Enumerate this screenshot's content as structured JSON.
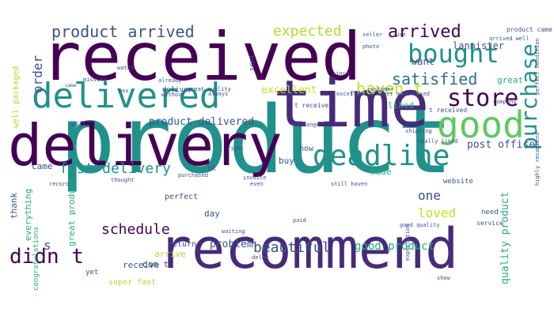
{
  "colors": {
    "background": "#ffffff",
    "palette": {
      "dark_purple": "#440154",
      "purple": "#472a7a",
      "indigo": "#3b528b",
      "blue": "#2c728e",
      "teal": "#21918c",
      "green_teal": "#27ad81",
      "green": "#5ec962",
      "light_green": "#addc30",
      "yellow": "#c5e021"
    }
  },
  "words": [
    {
      "text": "product",
      "color": "teal",
      "size": 118,
      "rot": 0
    },
    {
      "text": "received",
      "color": "dark_purple",
      "size": 84,
      "rot": 0
    },
    {
      "text": "delivery",
      "color": "dark_purple",
      "size": 72,
      "rot": 0
    },
    {
      "text": "time",
      "color": "purple",
      "size": 82,
      "rot": 0
    },
    {
      "text": "recommend",
      "color": "purple",
      "size": 70,
      "rot": 0
    },
    {
      "text": "delivered",
      "color": "teal",
      "size": 44,
      "rot": 0
    },
    {
      "text": "good",
      "color": "green",
      "size": 46,
      "rot": 0
    },
    {
      "text": "deadline",
      "color": "teal",
      "size": 36,
      "rot": 0
    },
    {
      "text": "bought",
      "color": "teal",
      "size": 32,
      "rot": 0
    },
    {
      "text": "store",
      "color": "dark_purple",
      "size": 30,
      "rot": 0
    },
    {
      "text": "purchase",
      "color": "teal",
      "size": 28,
      "rot": -90
    },
    {
      "text": "didn t",
      "color": "dark_purple",
      "size": 26,
      "rot": 0
    },
    {
      "text": "arrived",
      "color": "dark_purple",
      "size": 22,
      "rot": 0
    },
    {
      "text": "satisfied",
      "color": "blue",
      "size": 20,
      "rot": 0
    },
    {
      "text": "product arrived",
      "color": "indigo",
      "size": 20,
      "rot": 0
    },
    {
      "text": "expected",
      "color": "light_green",
      "size": 18,
      "rot": 0
    },
    {
      "text": "fast delivery",
      "color": "teal",
      "size": 18,
      "rot": 0
    },
    {
      "text": "haven t",
      "color": "yellow",
      "size": 20,
      "rot": 0
    },
    {
      "text": "beautiful",
      "color": "indigo",
      "size": 18,
      "rot": 0
    },
    {
      "text": "schedule",
      "color": "dark_purple",
      "size": 18,
      "rot": 0
    },
    {
      "text": "loved",
      "color": "yellow",
      "size": 16,
      "rot": 0
    },
    {
      "text": "one",
      "color": "indigo",
      "size": 16,
      "rot": 0
    },
    {
      "text": "order",
      "color": "indigo",
      "size": 16,
      "rot": -90
    },
    {
      "text": "good product",
      "color": "green_teal",
      "size": 14,
      "rot": 0
    },
    {
      "text": "problem",
      "color": "indigo",
      "size": 13,
      "rot": 0
    },
    {
      "text": "product delivered",
      "color": "indigo",
      "size": 13,
      "rot": 0
    },
    {
      "text": "post office",
      "color": "indigo",
      "size": 13,
      "rot": 0
    },
    {
      "text": "quality product",
      "color": "green_teal",
      "size": 13,
      "rot": -90
    },
    {
      "text": "excellent",
      "color": "yellow",
      "size": 13,
      "rot": 0
    },
    {
      "text": "want",
      "color": "indigo",
      "size": 12,
      "rot": 0
    },
    {
      "text": "liked",
      "color": "green_teal",
      "size": 11,
      "rot": 0
    },
    {
      "text": "great",
      "color": "green_teal",
      "size": 11,
      "rot": 0
    },
    {
      "text": "lannister",
      "color": "indigo",
      "size": 12,
      "rot": 0
    },
    {
      "text": "everything",
      "color": "green_teal",
      "size": 11,
      "rot": -90
    },
    {
      "text": "great product",
      "color": "green_teal",
      "size": 11,
      "rot": -90
    },
    {
      "text": "well packaged",
      "color": "light_green",
      "size": 10,
      "rot": -90
    },
    {
      "text": "congratulations",
      "color": "green_teal",
      "size": 9,
      "rot": -90
    },
    {
      "text": "receive",
      "color": "indigo",
      "size": 11,
      "rot": 0
    },
    {
      "text": "arrive",
      "color": "light_green",
      "size": 11,
      "rot": 0
    },
    {
      "text": "return",
      "color": "indigo",
      "size": 10,
      "rot": 0
    },
    {
      "text": "perfect",
      "color": "indigo",
      "size": 10,
      "rot": 0
    },
    {
      "text": "day",
      "color": "indigo",
      "size": 11,
      "rot": 0
    },
    {
      "text": "made",
      "color": "green_teal",
      "size": 11,
      "rot": 0
    },
    {
      "text": "buy",
      "color": "indigo",
      "size": 11,
      "rot": 0
    },
    {
      "text": "now",
      "color": "indigo",
      "size": 10,
      "rot": 0
    },
    {
      "text": "came",
      "color": "indigo",
      "size": 11,
      "rot": 0
    },
    {
      "text": "thank",
      "color": "indigo",
      "size": 11,
      "rot": -90
    },
    {
      "text": "s",
      "color": "indigo",
      "size": 16,
      "rot": 0
    },
    {
      "text": "don t",
      "color": "indigo",
      "size": 11,
      "rot": 0
    },
    {
      "text": "super fast",
      "color": "light_green",
      "size": 10,
      "rot": 0
    },
    {
      "text": "yet",
      "color": "indigo",
      "size": 9,
      "rot": 0
    },
    {
      "text": "need",
      "color": "indigo",
      "size": 9,
      "rot": 0
    },
    {
      "text": "service",
      "color": "indigo",
      "size": 8,
      "rot": 0
    },
    {
      "text": "website",
      "color": "indigo",
      "size": 9,
      "rot": 0
    },
    {
      "text": "ok",
      "color": "indigo",
      "size": 9,
      "rot": 0
    },
    {
      "text": "t receive",
      "color": "indigo",
      "size": 8,
      "rot": 0
    },
    {
      "text": "t received",
      "color": "indigo",
      "size": 8,
      "rot": 0
    },
    {
      "text": "sent",
      "color": "indigo",
      "size": 9,
      "rot": -90
    },
    {
      "text": "for",
      "color": "indigo",
      "size": 9,
      "rot": 0
    },
    {
      "text": "deliver",
      "color": "indigo",
      "size": 9,
      "rot": 0
    },
    {
      "text": "great quality",
      "color": "indigo",
      "size": 7,
      "rot": 0
    },
    {
      "text": "already",
      "color": "indigo",
      "size": 7,
      "rot": 0
    },
    {
      "text": "without",
      "color": "indigo",
      "size": 7,
      "rot": 0
    },
    {
      "text": "always",
      "color": "indigo",
      "size": 7,
      "rot": 0
    },
    {
      "text": "box",
      "color": "indigo",
      "size": 7,
      "rot": 0
    },
    {
      "text": "watch",
      "color": "indigo",
      "size": 7,
      "rot": 0
    },
    {
      "text": "will",
      "color": "indigo",
      "size": 8,
      "rot": 0
    },
    {
      "text": "missing",
      "color": "indigo",
      "size": 7,
      "rot": 0
    },
    {
      "text": "came",
      "color": "indigo",
      "size": 6,
      "rot": 0
    },
    {
      "text": "waiting",
      "color": "indigo",
      "size": 7,
      "rot": 0
    },
    {
      "text": "right",
      "color": "indigo",
      "size": 7,
      "rot": 0
    },
    {
      "text": "purchased",
      "color": "indigo",
      "size": 7,
      "rot": 0
    },
    {
      "text": "invoice",
      "color": "indigo",
      "size": 7,
      "rot": 0
    },
    {
      "text": "exchange",
      "color": "indigo",
      "size": 7,
      "rot": 0
    },
    {
      "text": "shipping",
      "color": "indigo",
      "size": 7,
      "rot": 0
    },
    {
      "text": "really liked",
      "color": "indigo",
      "size": 7,
      "rot": 0
    },
    {
      "text": "company",
      "color": "indigo",
      "size": 7,
      "rot": 0
    },
    {
      "text": "customer",
      "color": "indigo",
      "size": 7,
      "rot": 0
    },
    {
      "text": "excellent product advertised",
      "color": "indigo",
      "size": 7,
      "rot": 0
    },
    {
      "text": "seller",
      "color": "indigo",
      "size": 7,
      "rot": 0
    },
    {
      "text": "photo",
      "color": "indigo",
      "size": 7,
      "rot": 0
    },
    {
      "text": "use",
      "color": "indigo",
      "size": 7,
      "rot": 0
    },
    {
      "text": "product came",
      "color": "indigo",
      "size": 8,
      "rot": 0
    },
    {
      "text": "arrived well",
      "color": "indigo",
      "size": 7,
      "rot": 0
    },
    {
      "text": "highly recommend",
      "color": "indigo",
      "size": 7,
      "rot": -90
    },
    {
      "text": "perfect condition",
      "color": "indigo",
      "size": 7,
      "rot": -90
    },
    {
      "text": "expectation",
      "color": "indigo",
      "size": 7,
      "rot": -90
    },
    {
      "text": "good quality",
      "color": "indigo",
      "size": 7,
      "rot": 0
    },
    {
      "text": "still haven",
      "color": "indigo",
      "size": 7,
      "rot": 0
    },
    {
      "text": "delay",
      "color": "indigo",
      "size": 7,
      "rot": 0
    },
    {
      "text": "paid",
      "color": "indigo",
      "size": 7,
      "rot": 0
    },
    {
      "text": "thought",
      "color": "indigo",
      "size": 7,
      "rot": 0
    },
    {
      "text": "record",
      "color": "indigo",
      "size": 7,
      "rot": 0
    },
    {
      "text": "even",
      "color": "indigo",
      "size": 7,
      "rot": 0
    },
    {
      "text": "since",
      "color": "indigo",
      "size": 7,
      "rot": 0
    },
    {
      "text": "show",
      "color": "indigo",
      "size": 7,
      "rot": 0
    }
  ]
}
